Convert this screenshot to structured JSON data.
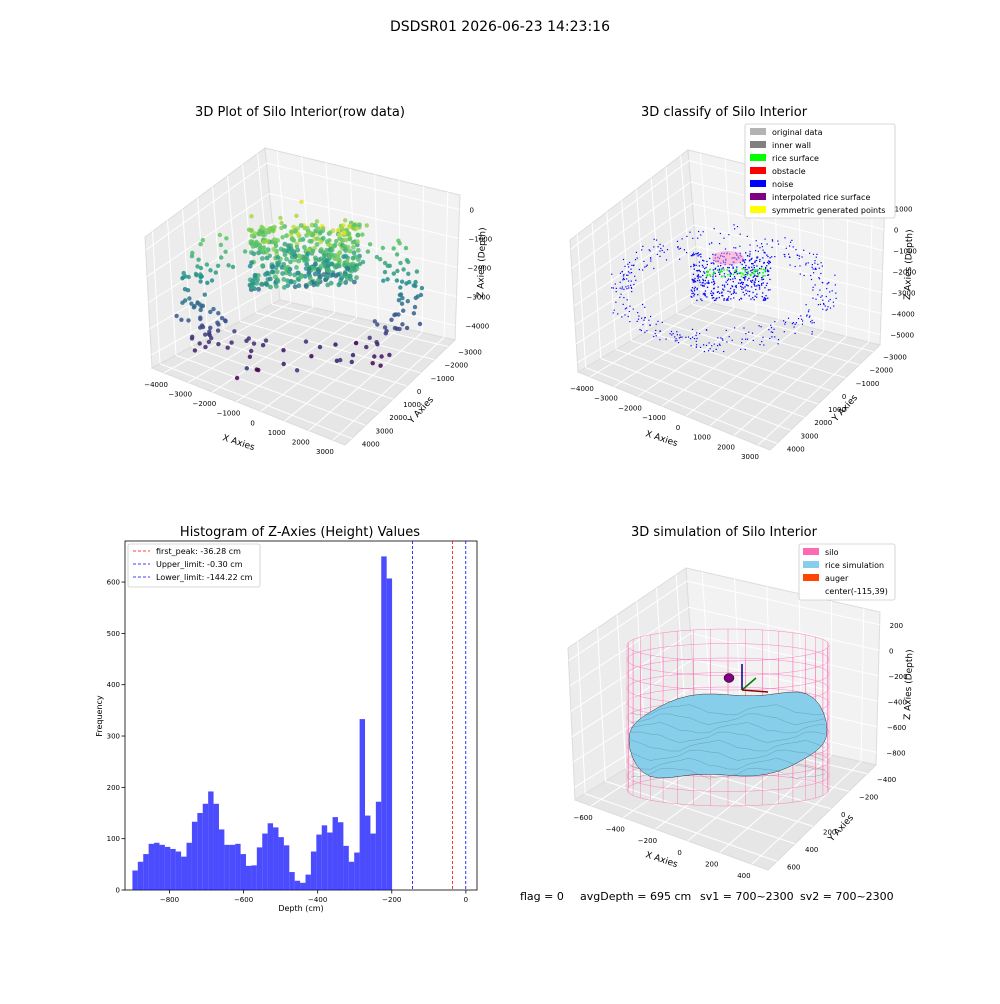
{
  "figure": {
    "suptitle": "DSDSR01 2026-06-23 14:23:16",
    "footer": {
      "flag": "flag = 0",
      "avg_depth": "avgDepth = 695 cm",
      "sv1": "sv1 = 700~2300",
      "sv2": "sv2 = 700~2300"
    }
  },
  "chart_data": [
    {
      "id": "raw",
      "type": "scatter",
      "title": "3D Plot of Silo Interior(row data)",
      "xlabel": "X Axies",
      "ylabel": "Y Axies",
      "zlabel": "Z Axies (Depth)",
      "x_ticks": [
        "−4000",
        "−3000",
        "−2000",
        "−1000",
        "0",
        "1000",
        "2000",
        "3000"
      ],
      "y_ticks": [
        "−3000",
        "−2000",
        "−1000",
        "0",
        "1000",
        "2000",
        "3000",
        "4000"
      ],
      "z_ticks": [
        "−4000",
        "−3000",
        "−2000",
        "−1000",
        "0"
      ],
      "colormap": [
        "#440154",
        "#3b528b",
        "#21918c",
        "#5ec962",
        "#fde725"
      ],
      "grid": true
    },
    {
      "id": "classify",
      "type": "scatter",
      "title": "3D classify of Silo Interior",
      "xlabel": "X Axies",
      "ylabel": "Y Axies",
      "zlabel": "Z Axies (Depth)",
      "x_ticks": [
        "−4000",
        "−3000",
        "−2000",
        "−1000",
        "0",
        "1000",
        "2000",
        "3000"
      ],
      "y_ticks": [
        "−3000",
        "−2000",
        "−1000",
        "0",
        "1000",
        "2000",
        "3000",
        "4000"
      ],
      "z_ticks": [
        "−5000",
        "−4000",
        "−3000",
        "−2000",
        "−1000",
        "0",
        "1000"
      ],
      "legend_position": "top-right",
      "legend": [
        {
          "label": "original data",
          "color": "#b3b3b3"
        },
        {
          "label": "inner wall",
          "color": "#808080"
        },
        {
          "label": "rice surface",
          "color": "#00ff00"
        },
        {
          "label": "obstacle",
          "color": "#ff0000"
        },
        {
          "label": "noise",
          "color": "#0000ff"
        },
        {
          "label": "interpolated rice surface",
          "color": "#800080"
        },
        {
          "label": "symmetric generated points",
          "color": "#ffff00"
        }
      ],
      "grid": true
    },
    {
      "id": "histogram",
      "type": "bar",
      "title": "Histogram of Z-Axies (Height) Values",
      "xlabel": "Depth (cm)",
      "ylabel": "Frequency",
      "xlim": [
        -920,
        30
      ],
      "ylim": [
        0,
        680
      ],
      "x_ticks": [
        -800,
        -600,
        -400,
        -200,
        0
      ],
      "x_tick_labels": [
        "−800",
        "−600",
        "−400",
        "−200",
        "0"
      ],
      "y_ticks": [
        0,
        100,
        200,
        300,
        400,
        500,
        600
      ],
      "y_tick_labels": [
        "0",
        "100",
        "200",
        "300",
        "400",
        "500",
        "600"
      ],
      "bin_start": -900,
      "bin_width": 14.6,
      "values": [
        38,
        55,
        70,
        90,
        92,
        88,
        84,
        80,
        75,
        65,
        92,
        133,
        150,
        168,
        192,
        168,
        118,
        88,
        88,
        90,
        70,
        47,
        48,
        83,
        110,
        130,
        122,
        103,
        87,
        35,
        18,
        14,
        30,
        75,
        108,
        126,
        112,
        142,
        132,
        86,
        55,
        73,
        333,
        145,
        110,
        172,
        650,
        607
      ],
      "bar_color": "#0000ff",
      "bar_alpha": 0.7,
      "vlines": [
        {
          "x": -36.28,
          "color": "#ff0000",
          "label": "first_peak: -36.28 cm"
        },
        {
          "x": -0.3,
          "color": "#0000ff",
          "label": "Upper_limit: -0.30 cm"
        },
        {
          "x": -144.22,
          "color": "#0000ff",
          "label": "Lower_limit: -144.22 cm"
        }
      ],
      "legend_position": "top-left"
    },
    {
      "id": "simulation",
      "type": "surface",
      "title": "3D simulation of Silo Interior",
      "xlabel": "X Axies",
      "ylabel": "Y Axies",
      "zlabel": "Z Axies (Depth)",
      "x_ticks": [
        "−600",
        "−400",
        "−200",
        "0",
        "200",
        "400"
      ],
      "y_ticks": [
        "−400",
        "−200",
        "0",
        "200",
        "400",
        "600"
      ],
      "z_ticks": [
        "−800",
        "−600",
        "−400",
        "−200",
        "0",
        "200"
      ],
      "legend_position": "top-right",
      "legend": [
        {
          "label": "silo",
          "color": "#ff69b4"
        },
        {
          "label": "rice simulation",
          "color": "#87ceeb"
        },
        {
          "label": "auger",
          "color": "#ff4500"
        },
        {
          "label": "center(-115,39)",
          "color": ""
        }
      ],
      "grid": true
    }
  ]
}
